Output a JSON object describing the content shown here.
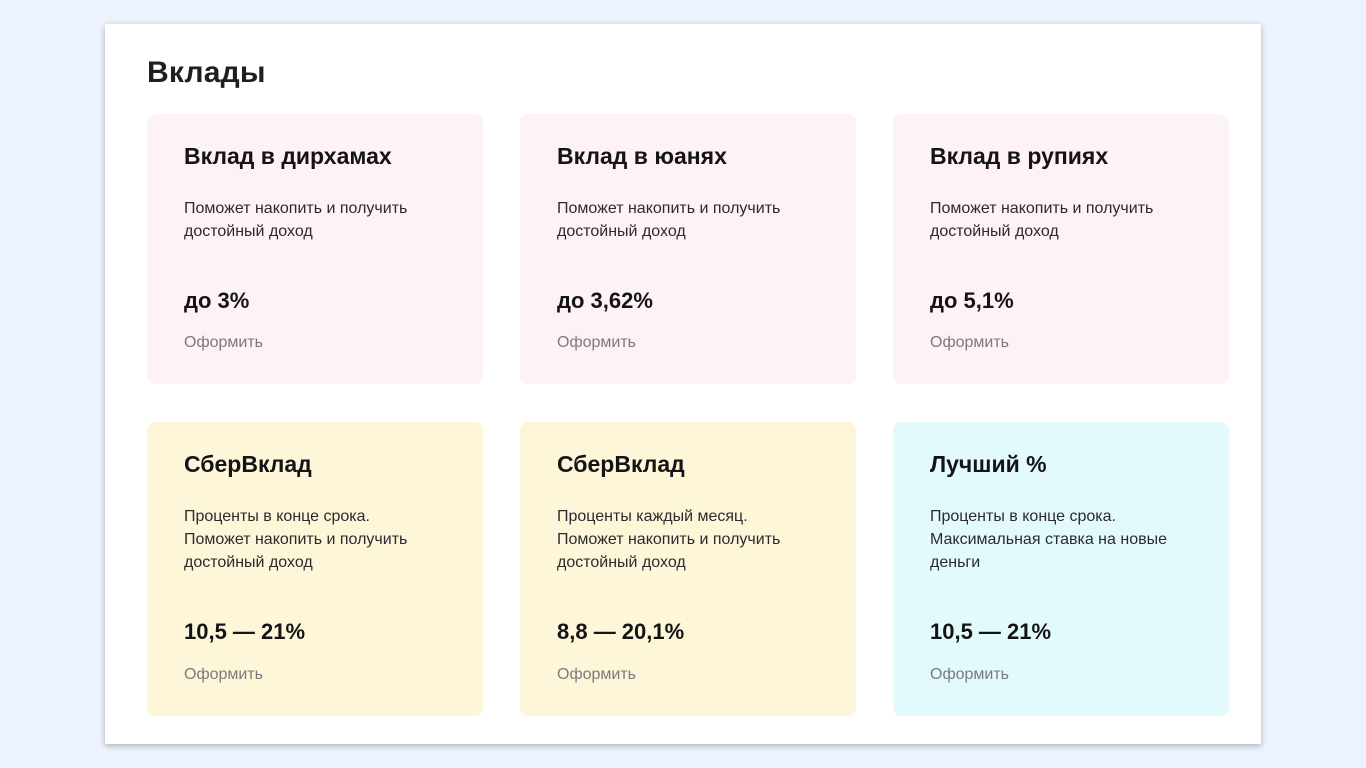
{
  "page": {
    "title": "Вклады"
  },
  "cards": [
    {
      "title": "Вклад в дирхамах",
      "description": "Поможет накопить и получить\nдостойный доход",
      "rate": "до 3%",
      "action": "Оформить",
      "color": "#fdf2f6"
    },
    {
      "title": "Вклад в юанях",
      "description": "Поможет накопить и получить\nдостойный доход",
      "rate": "до 3,62%",
      "action": "Оформить",
      "color": "#fdf2f6"
    },
    {
      "title": "Вклад в рупиях",
      "description": "Поможет накопить и получить\nдостойный доход",
      "rate": "до 5,1%",
      "action": "Оформить",
      "color": "#fdf2f6"
    },
    {
      "title": "СберВклад",
      "description": "Проценты в конце срока.\nПоможет накопить и получить\nдостойный доход",
      "rate": "10,5 — 21%",
      "action": "Оформить",
      "color": "#fef6d9"
    },
    {
      "title": "СберВклад",
      "description": "Проценты каждый месяц.\nПоможет накопить и получить\nдостойный доход",
      "rate": "8,8 — 20,1%",
      "action": "Оформить",
      "color": "#fef6d9"
    },
    {
      "title": "Лучший %",
      "description": "Проценты в конце срока.\nМаксимальная ставка на новые\nденьги",
      "rate": "10,5 — 21%",
      "action": "Оформить",
      "color": "#e3fafc"
    }
  ],
  "colors": {
    "background": "#ecf3fe",
    "panel": "#ffffff",
    "link": "#7a7a80"
  }
}
